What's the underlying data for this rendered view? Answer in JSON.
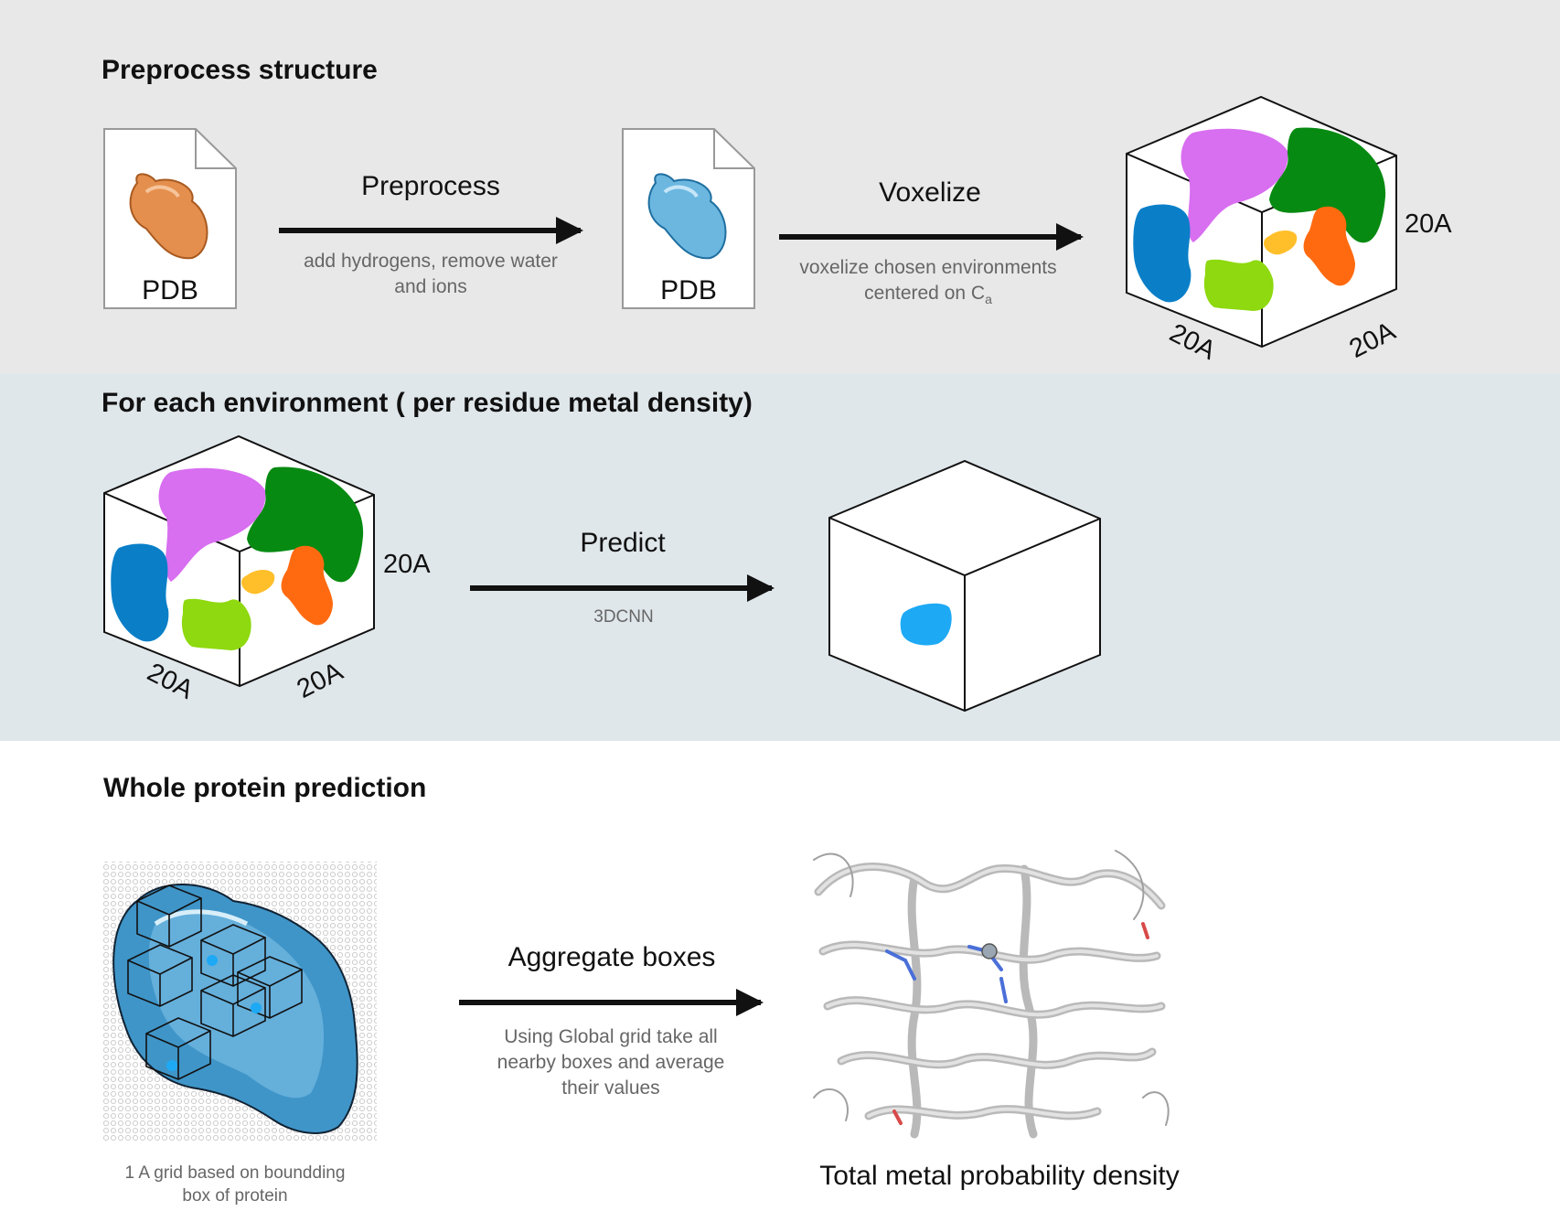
{
  "sections": {
    "preprocess": {
      "title": "Preprocess structure",
      "file_label_in": "PDB",
      "file_label_out": "PDB",
      "step1_title": "Preprocess",
      "step1_desc_line1": "add hydrogens, remove water",
      "step1_desc_line2": "and ions",
      "step2_title": "Voxelize",
      "step2_desc_line1": "voxelize chosen environments",
      "step2_desc_line2_prefix": "centered on C",
      "step2_desc_line2_sub": "a",
      "cube_dim_side": "20A",
      "cube_dim_bottom_left": "20A",
      "cube_dim_bottom_right": "20A"
    },
    "environment": {
      "title": "For each environment ( per residue metal density)",
      "step_title": "Predict",
      "step_desc": "3DCNN",
      "cube_dim_side": "20A",
      "cube_dim_bottom_left": "20A",
      "cube_dim_bottom_right": "20A"
    },
    "whole": {
      "title": "Whole protein prediction",
      "step_title": "Aggregate boxes",
      "step_desc_line1": "Using Global grid take all",
      "step_desc_line2": "nearby boxes and average",
      "step_desc_line3": "their values",
      "grid_caption_line1": "1 A grid based on boundding",
      "grid_caption_line2": "box of protein",
      "result_caption": "Total metal probability density"
    }
  },
  "colors": {
    "band1": "#e8e8e8",
    "band2": "#e0e7eb",
    "band3": "#ffffff",
    "orange_blob": "#e48f4e",
    "blue_blob": "#6bb7e0",
    "magenta": "#d86ef0",
    "green": "#078a12",
    "dark_blue": "#0a7fc8",
    "lime": "#8ed90f",
    "orange": "#ff6a10",
    "yellow": "#ffbf2a",
    "density_blue": "#1ea9f5"
  }
}
